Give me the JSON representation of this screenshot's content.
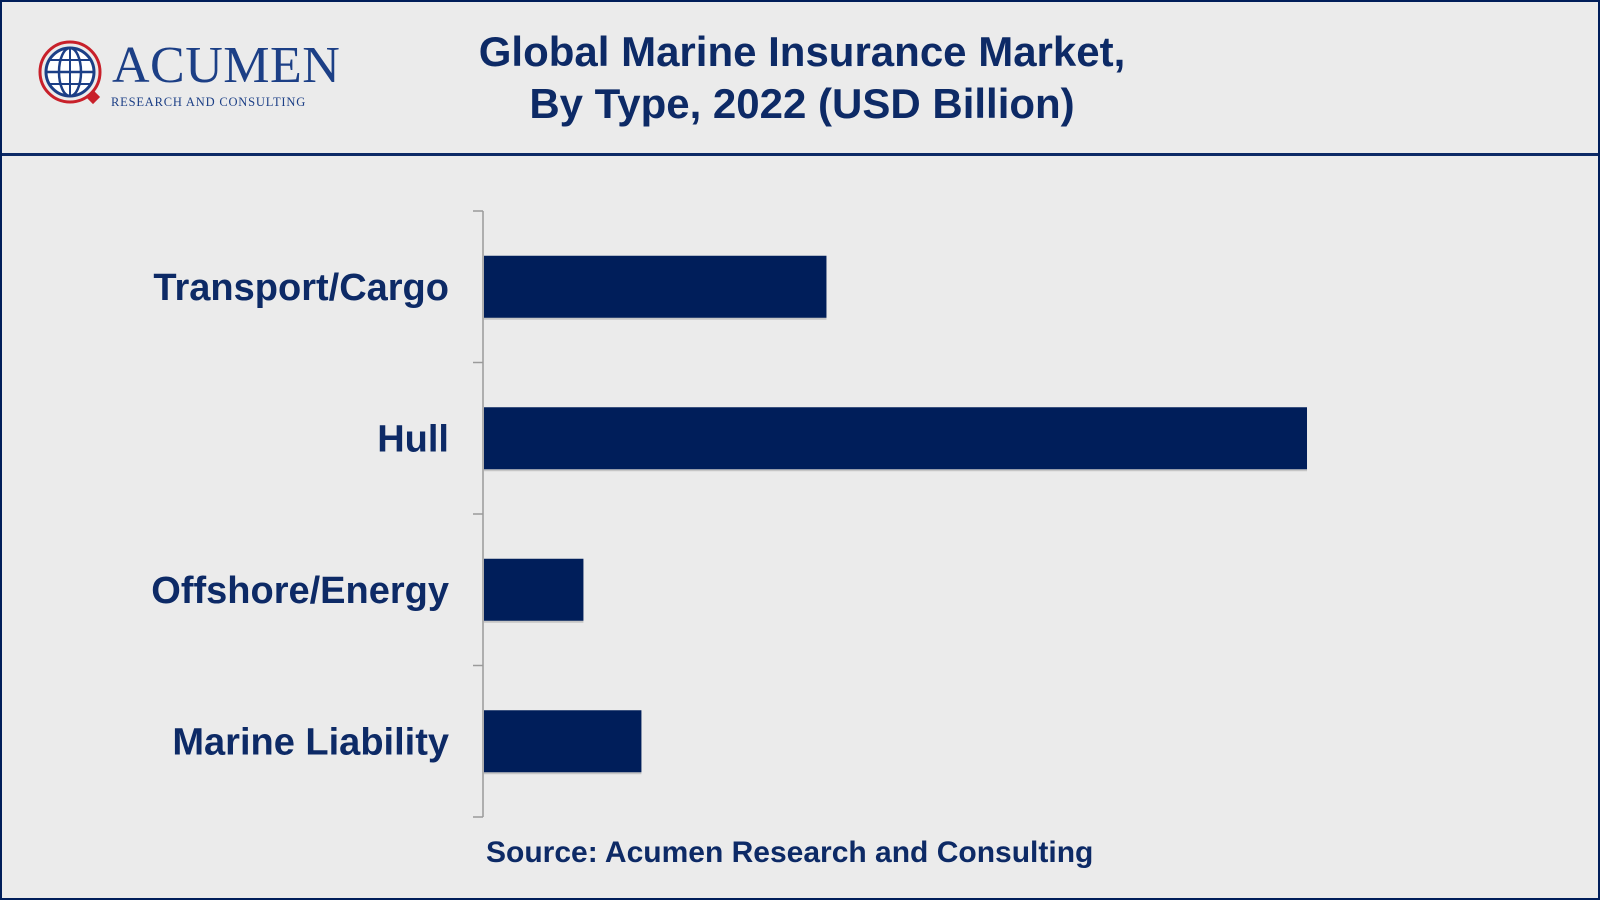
{
  "header": {
    "logo": {
      "name": "ACUMEN",
      "tagline": "RESEARCH AND CONSULTING",
      "icon": "globe-icon"
    },
    "title_line1": "Global Marine Insurance Market,",
    "title_line2": "By Type, 2022 (USD Billion)"
  },
  "colors": {
    "bar": "#001e5a",
    "text": "#0d2a66",
    "background": "#ebebeb",
    "axis": "#9a9a9a"
  },
  "chart_data": {
    "type": "bar",
    "orientation": "horizontal",
    "title": "Global Marine Insurance Market, By Type, 2022 (USD Billion)",
    "categories": [
      "Transport/Cargo",
      "Hull",
      "Offshore/Energy",
      "Marine Liability"
    ],
    "values": [
      12.4,
      29.8,
      3.6,
      5.7
    ],
    "xlim": [
      0,
      34
    ],
    "xlabel": "",
    "ylabel": "",
    "grid": false,
    "legend": "none"
  },
  "footer": {
    "source": "Source: Acumen Research and Consulting"
  }
}
